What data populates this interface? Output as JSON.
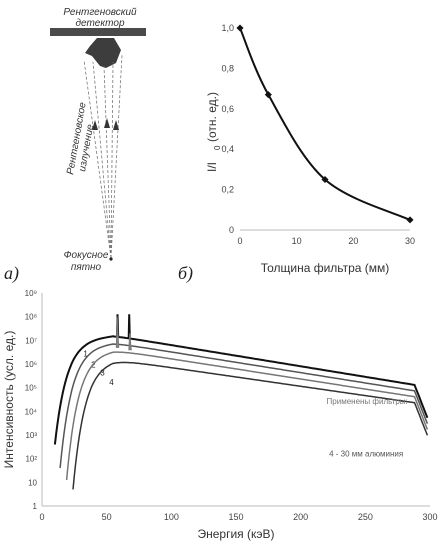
{
  "diagram": {
    "detector_label_line1": "Рентгеновский",
    "detector_label_line2": "детектор",
    "beam_label_line1": "Рентгеновское",
    "beam_label_line2": "излучение",
    "focal_label_line1": "Фокусное",
    "focal_label_line2": "пятно"
  },
  "panel_labels": {
    "a": "а)",
    "b": "б)"
  },
  "chart_data": [
    {
      "type": "line",
      "xlabel": "Толщина фильтра (мм)",
      "ylabel": "I/I",
      "ylabel_sub": "0",
      "ylabel_unit": "(отн. ед.)",
      "xlim": [
        0,
        30
      ],
      "ylim": [
        0,
        1.0
      ],
      "xticks": [
        0,
        10,
        20,
        30
      ],
      "yticks": [
        "0",
        "0,2",
        "0,4",
        "0,6",
        "0,8",
        "1,0"
      ],
      "grid": false,
      "series": [
        {
          "x": [
            0,
            5,
            15,
            30
          ],
          "y": [
            1.0,
            0.67,
            0.25,
            0.05
          ],
          "color": "#111111"
        }
      ]
    },
    {
      "type": "line",
      "xlabel": "Энергия (кэВ)",
      "ylabel": "Интенсивность (усл. ед.)",
      "xlim": [
        0,
        300
      ],
      "ylim_log10": [
        0,
        9
      ],
      "xticks": [
        0,
        50,
        100,
        150,
        200,
        250,
        300
      ],
      "yticks": [
        "1",
        "10",
        "10²",
        "10³",
        "10⁴",
        "10⁵",
        "10⁶",
        "10⁷",
        "10⁸",
        "10⁹"
      ],
      "grid": false,
      "legend_title": "Применены фильтры:",
      "legend_last": "4 - 30 мм алюминия",
      "series": [
        {
          "name": "1",
          "color": "#111111",
          "start_kev": 10,
          "peak_log": 7.2,
          "end_log": 5.1
        },
        {
          "name": "2",
          "color": "#555555",
          "start_kev": 14,
          "peak_log": 6.9,
          "end_log": 4.85
        },
        {
          "name": "3",
          "color": "#777777",
          "start_kev": 19,
          "peak_log": 6.6,
          "end_log": 4.6
        },
        {
          "name": "4",
          "color": "#333333",
          "start_kev": 24,
          "peak_log": 6.2,
          "end_log": 4.35
        }
      ],
      "k_lines_kev": [
        57.5,
        59.3,
        67.2,
        69.0
      ]
    }
  ]
}
